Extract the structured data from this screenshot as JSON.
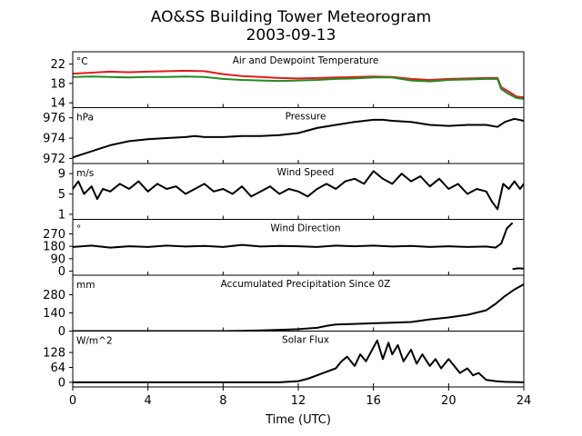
{
  "chart_data": {
    "type": "line",
    "title": "AO&SS Building Tower Meteorogram",
    "subtitle": "2003-09-13",
    "xlabel": "Time (UTC)",
    "xlim": [
      0,
      24
    ],
    "xticks": [
      0,
      4,
      8,
      12,
      16,
      20,
      24
    ],
    "grid": false,
    "panels": [
      {
        "title": "Air and Dewpoint Temperature",
        "unit": "°C",
        "ylim": [
          13,
          24.5
        ],
        "yticks": [
          14,
          18,
          22
        ],
        "series": [
          {
            "color": "#e41a1c",
            "x": [
              0,
              1,
              2,
              3,
              4,
              5,
              6,
              7,
              8,
              9,
              10,
              11,
              12,
              13,
              14,
              15,
              16,
              17,
              18,
              19,
              20,
              21,
              22,
              22.6,
              22.8,
              23.2,
              23.6,
              24
            ],
            "values": [
              20.0,
              20.2,
              20.4,
              20.3,
              20.4,
              20.5,
              20.6,
              20.5,
              19.9,
              19.5,
              19.3,
              19.1,
              19.0,
              19.1,
              19.2,
              19.3,
              19.4,
              19.3,
              18.9,
              18.7,
              18.9,
              19.0,
              19.1,
              19.1,
              17.2,
              16.3,
              15.3,
              15.1
            ]
          },
          {
            "color": "#228b22",
            "x": [
              0,
              1,
              2,
              3,
              4,
              5,
              6,
              7,
              8,
              9,
              10,
              11,
              12,
              13,
              14,
              15,
              16,
              17,
              18,
              19,
              20,
              21,
              22,
              22.6,
              22.8,
              23.2,
              23.6,
              24
            ],
            "values": [
              19.3,
              19.4,
              19.3,
              19.2,
              19.3,
              19.3,
              19.4,
              19.3,
              18.9,
              18.7,
              18.6,
              18.5,
              18.6,
              18.7,
              18.9,
              19.0,
              19.2,
              19.2,
              18.6,
              18.4,
              18.7,
              18.8,
              18.9,
              18.9,
              16.8,
              15.8,
              15.0,
              14.8
            ]
          }
        ]
      },
      {
        "title": "Pressure",
        "unit": "hPa",
        "ylim": [
          971.5,
          977
        ],
        "yticks": [
          972,
          974,
          976
        ],
        "series": [
          {
            "color": "#000000",
            "x": [
              0,
              0.5,
              1,
              1.5,
              2,
              3,
              4,
              5,
              6,
              6.5,
              7,
              8,
              9,
              10,
              11,
              12,
              13,
              14,
              15,
              16,
              16.5,
              17,
              18,
              19,
              20,
              21,
              22,
              22.6,
              23,
              23.5,
              24
            ],
            "values": [
              972.1,
              972.4,
              972.7,
              973.0,
              973.3,
              973.7,
              973.9,
              974.0,
              974.1,
              974.2,
              974.1,
              974.1,
              974.2,
              974.2,
              974.3,
              974.5,
              975.0,
              975.3,
              975.6,
              975.8,
              975.8,
              975.7,
              975.6,
              975.3,
              975.2,
              975.3,
              975.3,
              975.1,
              975.6,
              975.9,
              975.7
            ]
          }
        ]
      },
      {
        "title": "Wind Speed",
        "unit": "m/s",
        "ylim": [
          0,
          11
        ],
        "yticks": [
          1,
          5,
          9
        ],
        "series": [
          {
            "color": "#000000",
            "x": [
              0,
              0.3,
              0.6,
              1,
              1.3,
              1.6,
              2,
              2.5,
              3,
              3.5,
              4,
              4.5,
              5,
              5.5,
              6,
              6.5,
              7,
              7.5,
              8,
              8.5,
              9,
              9.5,
              10,
              10.5,
              11,
              11.5,
              12,
              12.5,
              13,
              13.5,
              14,
              14.5,
              15,
              15.5,
              16,
              16.5,
              17,
              17.5,
              18,
              18.5,
              19,
              19.5,
              20,
              20.5,
              21,
              21.5,
              22,
              22.3,
              22.6,
              22.9,
              23.2,
              23.5,
              23.8,
              24
            ],
            "values": [
              6,
              7.5,
              5,
              6.5,
              4,
              6,
              5.5,
              7,
              6,
              7.5,
              5.5,
              7,
              6,
              6.5,
              5,
              6,
              7,
              5.5,
              6,
              5,
              6.5,
              4.5,
              5.5,
              6.5,
              5,
              6,
              5.5,
              4.5,
              6,
              7,
              6,
              7.5,
              8,
              7,
              9.5,
              8,
              7,
              9,
              7.5,
              8.5,
              6.5,
              8,
              6,
              7,
              5,
              6,
              5.5,
              3.5,
              2,
              7,
              6,
              7.5,
              6,
              7
            ]
          }
        ]
      },
      {
        "title": "Wind Direction",
        "unit": "°",
        "ylim": [
          -30,
          375
        ],
        "yticks": [
          0,
          90,
          180,
          270
        ],
        "series": [
          {
            "color": "#000000",
            "x": [
              0,
              1,
              2,
              3,
              4,
              5,
              6,
              7,
              8,
              9,
              10,
              11,
              12,
              13,
              14,
              15,
              16,
              17,
              18,
              19,
              20,
              21,
              22,
              22.5,
              22.8,
              23.1,
              23.4
            ],
            "values": [
              175,
              185,
              170,
              180,
              175,
              185,
              178,
              182,
              175,
              190,
              178,
              182,
              180,
              175,
              185,
              180,
              185,
              178,
              182,
              175,
              180,
              175,
              178,
              170,
              200,
              310,
              350
            ]
          },
          {
            "color": "#000000",
            "x": [
              23.4,
              23.7,
              24
            ],
            "values": [
              15,
              20,
              18
            ]
          }
        ]
      },
      {
        "title": "Accumulated Precipitation Since 0Z",
        "unit": "mm",
        "ylim": [
          0,
          430
        ],
        "yticks": [
          0,
          140,
          280
        ],
        "series": [
          {
            "color": "#000000",
            "x": [
              0,
              8,
              9,
              10,
              11,
              12,
              13,
              13.5,
              14,
              15,
              16,
              17,
              18,
              18.5,
              19,
              20,
              21,
              22,
              22.5,
              23,
              23.5,
              24
            ],
            "values": [
              0,
              0,
              2,
              5,
              10,
              15,
              25,
              40,
              50,
              55,
              60,
              65,
              70,
              80,
              90,
              105,
              125,
              160,
              210,
              270,
              320,
              360
            ]
          }
        ]
      },
      {
        "title": "Solar Flux",
        "unit": "W/m^2",
        "ylim": [
          -20,
          220
        ],
        "yticks": [
          0,
          64,
          128
        ],
        "series": [
          {
            "color": "#000000",
            "x": [
              0,
              6,
              10,
              11,
              12,
              12.5,
              13,
              13.5,
              14,
              14.3,
              14.6,
              15,
              15.3,
              15.6,
              16,
              16.2,
              16.5,
              16.8,
              17,
              17.3,
              17.6,
              18,
              18.3,
              18.6,
              19,
              19.3,
              19.6,
              20,
              20.3,
              20.6,
              21,
              21.3,
              21.6,
              22,
              22.5,
              23,
              24
            ],
            "values": [
              0,
              0,
              0,
              0,
              5,
              15,
              30,
              45,
              60,
              90,
              110,
              70,
              120,
              90,
              150,
              180,
              100,
              170,
              120,
              160,
              90,
              140,
              80,
              120,
              70,
              100,
              60,
              100,
              70,
              40,
              60,
              30,
              40,
              10,
              5,
              2,
              0
            ]
          }
        ]
      }
    ]
  }
}
